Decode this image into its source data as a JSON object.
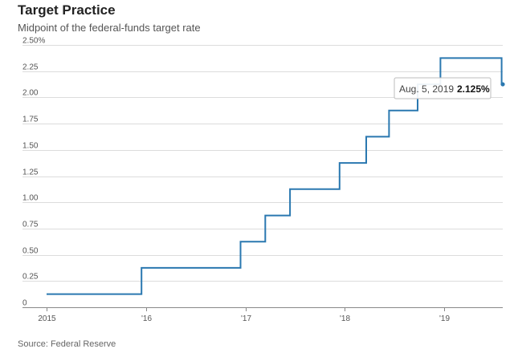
{
  "chart_data": {
    "type": "line",
    "title": "Target Practice",
    "subtitle": "Midpoint of the federal-funds target rate",
    "source": "Source: Federal Reserve",
    "xlabel": "",
    "ylabel": "",
    "ylim": [
      0,
      2.5
    ],
    "y_ticks": [
      {
        "value": 0,
        "label": "0"
      },
      {
        "value": 0.25,
        "label": "0.25"
      },
      {
        "value": 0.5,
        "label": "0.50"
      },
      {
        "value": 0.75,
        "label": "0.75"
      },
      {
        "value": 1.0,
        "label": "1.00"
      },
      {
        "value": 1.25,
        "label": "1.25"
      },
      {
        "value": 1.5,
        "label": "1.50"
      },
      {
        "value": 1.75,
        "label": "1.75"
      },
      {
        "value": 2.0,
        "label": "2.00"
      },
      {
        "value": 2.25,
        "label": "2.25"
      },
      {
        "value": 2.5,
        "label": "2.50%"
      }
    ],
    "xlim": [
      "2015-01-01",
      "2019-08-05"
    ],
    "x_ticks": [
      {
        "date": "2015-01-01",
        "label": "2015"
      },
      {
        "date": "2016-01-01",
        "label": "'16"
      },
      {
        "date": "2017-01-01",
        "label": "'17"
      },
      {
        "date": "2018-01-01",
        "label": "'18"
      },
      {
        "date": "2019-01-01",
        "label": "'19"
      }
    ],
    "grid": true,
    "line_color": "#2a78b0",
    "series": [
      {
        "step": true,
        "points": [
          {
            "date": "2015-01-01",
            "value": 0.125
          },
          {
            "date": "2015-12-16",
            "value": 0.375
          },
          {
            "date": "2016-12-14",
            "value": 0.625
          },
          {
            "date": "2017-03-15",
            "value": 0.875
          },
          {
            "date": "2017-06-14",
            "value": 1.125
          },
          {
            "date": "2017-12-13",
            "value": 1.375
          },
          {
            "date": "2018-03-21",
            "value": 1.625
          },
          {
            "date": "2018-06-13",
            "value": 1.875
          },
          {
            "date": "2018-09-26",
            "value": 2.125
          },
          {
            "date": "2018-12-19",
            "value": 2.375
          },
          {
            "date": "2019-08-01",
            "value": 2.125
          },
          {
            "date": "2019-08-05",
            "value": 2.125
          }
        ]
      }
    ],
    "tooltip": {
      "date": "Aug. 5, 2019",
      "value": "2.125%"
    }
  }
}
